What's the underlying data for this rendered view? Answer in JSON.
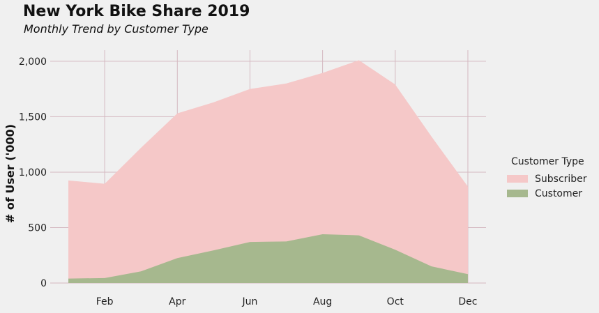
{
  "chart_data": {
    "type": "area",
    "stacked": false,
    "title": "New York Bike Share 2019",
    "subtitle": "Monthly Trend by Customer Type",
    "xlabel": "",
    "ylabel": "# of User ('000)",
    "x": [
      1,
      2,
      3,
      4,
      5,
      6,
      7,
      8,
      9,
      10,
      11,
      12
    ],
    "xticks": [
      2,
      4,
      6,
      8,
      10,
      12
    ],
    "xtick_labels": [
      "Feb",
      "Apr",
      "Jun",
      "Aug",
      "Oct",
      "Dec"
    ],
    "xlim": [
      0.5,
      12.5
    ],
    "ylim": [
      0,
      2100
    ],
    "yticks": [
      0,
      500,
      1000,
      1500,
      2000
    ],
    "ytick_labels": [
      "0",
      "500",
      "1,000",
      "1,500",
      "2,000"
    ],
    "grid": true,
    "legend": {
      "title": "Customer Type",
      "placement": "right"
    },
    "series": [
      {
        "name": "Subscriber",
        "color": "#f5c8c8",
        "values": [
          925,
          895,
          1220,
          1530,
          1630,
          1750,
          1800,
          1895,
          2010,
          1790,
          1320,
          870
        ]
      },
      {
        "name": "Customer",
        "color": "#a6b88e",
        "values": [
          40,
          45,
          105,
          225,
          295,
          370,
          375,
          440,
          430,
          300,
          150,
          80
        ]
      }
    ],
    "colors": {
      "grid": "#d4b8c0",
      "background": "#f0f0f0"
    }
  }
}
